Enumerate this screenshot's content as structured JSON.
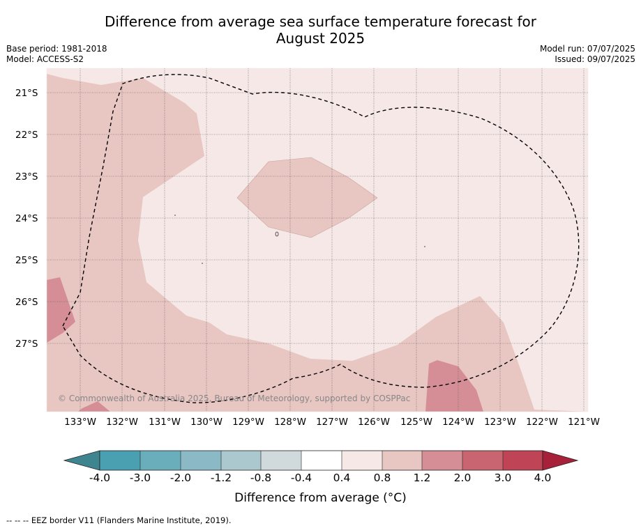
{
  "title_line1": "Difference from average sea surface temperature forecast for",
  "title_line2": "August 2025",
  "base_period": "Base period: 1981-2018",
  "model": "Model: ACCESS-S2",
  "model_run": "Model run: 07/07/2025",
  "issued": "Issued: 09/07/2025",
  "copyright": "© Commonwealth of Australia 2025, Bureau of Meteorology, supported by COSPPac",
  "footnote": "-- -- -- EEZ border V11 (Flanders Marine Institute, 2019).",
  "lat_labels": [
    "21°S",
    "22°S",
    "23°S",
    "24°S",
    "25°S",
    "26°S",
    "27°S"
  ],
  "lon_labels": [
    "133°W",
    "132°W",
    "131°W",
    "130°W",
    "129°W",
    "128°W",
    "127°W",
    "126°W",
    "125°W",
    "124°W",
    "123°W",
    "122°W",
    "121°W"
  ],
  "colorbar": {
    "title": "Difference from average (°C)",
    "tick_labels": [
      "-4.0",
      "-3.0",
      "-2.0",
      "-1.2",
      "-0.8",
      "-0.4",
      "0.4",
      "0.8",
      "1.2",
      "2.0",
      "3.0",
      "4.0"
    ],
    "colors": [
      "#4a9fb0",
      "#6aaebc",
      "#8bbac6",
      "#aac8cd",
      "#d0d9db",
      "#ffffff",
      "#f5e8e7",
      "#e8c6c2",
      "#d58e95",
      "#c86570",
      "#bf4455"
    ],
    "under_color": "#3f8590",
    "over_color": "#a8213a"
  },
  "map_colors": {
    "background": "#f5e8e7",
    "warm_1": "#e8c6c2",
    "warm_2": "#d58e95"
  }
}
